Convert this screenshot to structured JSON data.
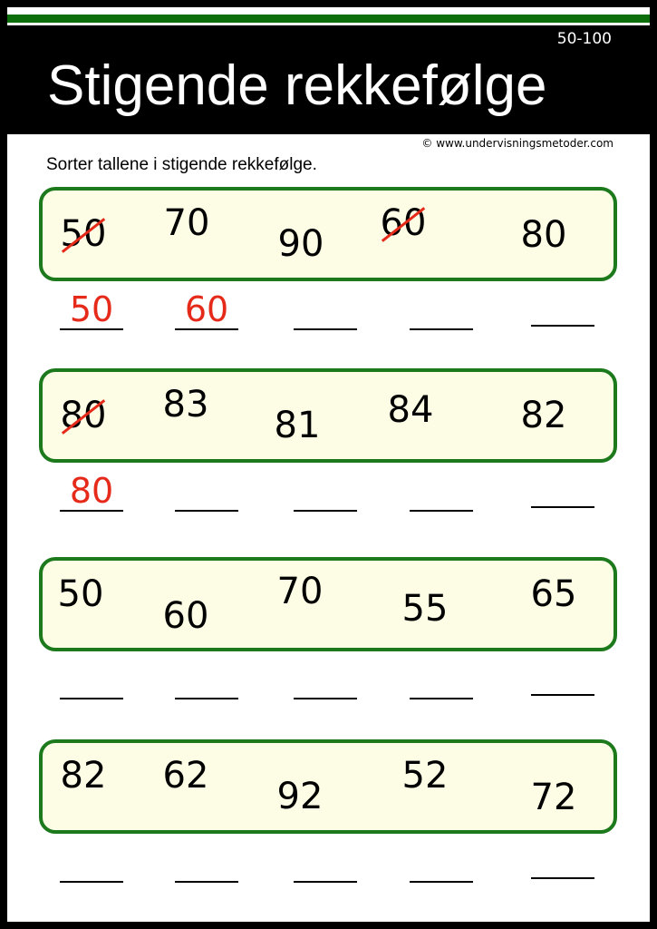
{
  "header": {
    "title": "Stigende rekkefølge",
    "range": "50-100"
  },
  "copyright": "© www.undervisningsmetoder.com",
  "instruction": "Sorter tallene i stigende rekkefølge.",
  "colors": {
    "accent_green": "#1c7a1c",
    "box_fill": "#fdfde6",
    "answer_red": "#e52a1a"
  },
  "rows": [
    {
      "numbers": [
        {
          "value": "50",
          "crossed": true
        },
        {
          "value": "70",
          "crossed": false
        },
        {
          "value": "90",
          "crossed": false
        },
        {
          "value": "60",
          "crossed": true
        },
        {
          "value": "80",
          "crossed": false
        }
      ],
      "answers": [
        "50",
        "60",
        "",
        "",
        ""
      ]
    },
    {
      "numbers": [
        {
          "value": "80",
          "crossed": true
        },
        {
          "value": "83",
          "crossed": false
        },
        {
          "value": "81",
          "crossed": false
        },
        {
          "value": "84",
          "crossed": false
        },
        {
          "value": "82",
          "crossed": false
        }
      ],
      "answers": [
        "80",
        "",
        "",
        "",
        ""
      ]
    },
    {
      "numbers": [
        {
          "value": "50",
          "crossed": false
        },
        {
          "value": "60",
          "crossed": false
        },
        {
          "value": "70",
          "crossed": false
        },
        {
          "value": "55",
          "crossed": false
        },
        {
          "value": "65",
          "crossed": false
        }
      ],
      "answers": [
        "",
        "",
        "",
        "",
        ""
      ]
    },
    {
      "numbers": [
        {
          "value": "82",
          "crossed": false
        },
        {
          "value": "62",
          "crossed": false
        },
        {
          "value": "92",
          "crossed": false
        },
        {
          "value": "52",
          "crossed": false
        },
        {
          "value": "72",
          "crossed": false
        }
      ],
      "answers": [
        "",
        "",
        "",
        "",
        ""
      ]
    }
  ]
}
